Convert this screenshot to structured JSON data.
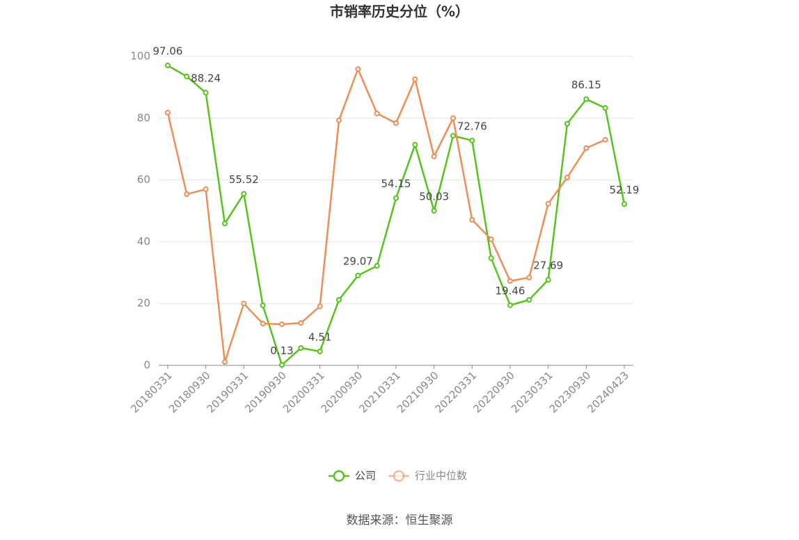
{
  "chart_data": {
    "type": "line",
    "title": "市销率历史分位（%）",
    "source": "数据来源：恒生聚源",
    "categories": [
      "20180331",
      null,
      "20180930",
      null,
      "20190331",
      null,
      "20190930",
      null,
      "20200331",
      null,
      "20200930",
      null,
      "20210331",
      null,
      "20210930",
      null,
      "20220331",
      null,
      "20220930",
      null,
      "20230331",
      null,
      "20230930",
      null,
      "20240423"
    ],
    "series": [
      {
        "name": "公司",
        "color": "#52c41a",
        "values": [
          97.06,
          93.5,
          88.24,
          45.9,
          55.52,
          19.4,
          0.13,
          5.6,
          4.51,
          21.2,
          29.07,
          32.2,
          54.15,
          71.4,
          50.03,
          74.3,
          72.76,
          34.7,
          19.46,
          21.2,
          27.69,
          78.2,
          86.15,
          83.3,
          52.19
        ]
      },
      {
        "name": "行业中位数",
        "color": "#f08c55",
        "values": [
          81.8,
          55.4,
          57.0,
          1.1,
          20.0,
          13.5,
          13.3,
          13.7,
          19.1,
          79.3,
          95.9,
          81.5,
          78.4,
          92.6,
          67.6,
          80.0,
          47.1,
          40.8,
          27.3,
          28.4,
          52.3,
          60.8,
          70.3,
          73.0,
          null
        ]
      }
    ],
    "ylim": [
      0,
      100
    ],
    "yticks": [
      0,
      20,
      40,
      60,
      80,
      100
    ],
    "grid": true,
    "legend": "bottom"
  }
}
